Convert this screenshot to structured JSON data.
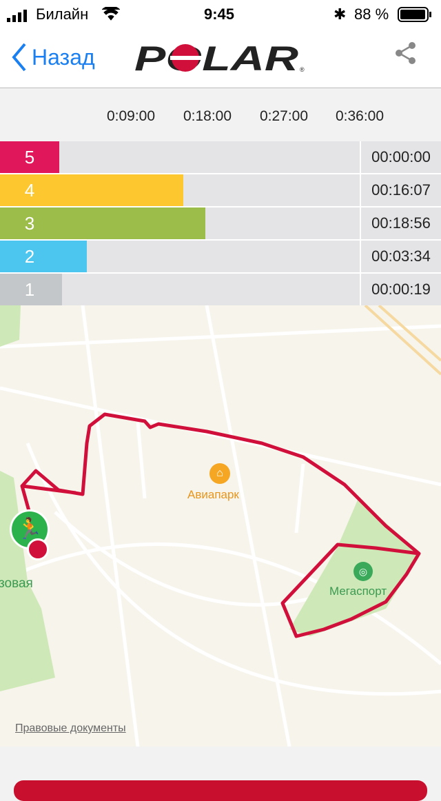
{
  "status": {
    "carrier": "Билайн",
    "time": "9:45",
    "battery": "88 %"
  },
  "nav": {
    "back_label": "Назад",
    "brand": "POLAR"
  },
  "axis": {
    "ticks": [
      "0:09:00",
      "0:18:00",
      "0:27:00",
      "0:36:00"
    ],
    "max_minutes": 39
  },
  "zones": [
    {
      "zone": "5",
      "time": "00:00:00",
      "minutes": 0,
      "color": "#e0175a"
    },
    {
      "zone": "4",
      "time": "00:16:07",
      "minutes": 16.12,
      "color": "#fdc82f"
    },
    {
      "zone": "3",
      "time": "00:18:56",
      "minutes": 18.93,
      "color": "#9dbd4b"
    },
    {
      "zone": "2",
      "time": "00:03:34",
      "minutes": 3.57,
      "color": "#4cc6ee"
    },
    {
      "zone": "1",
      "time": "00:00:19",
      "minutes": 0.32,
      "color": "#c3c7c9"
    }
  ],
  "map": {
    "poi_mall": "Авиапарк",
    "poi_stadium": "Мегаспорт",
    "park_label": "зовая",
    "legal": "Правовые документы",
    "route_color": "#d0103a"
  }
}
